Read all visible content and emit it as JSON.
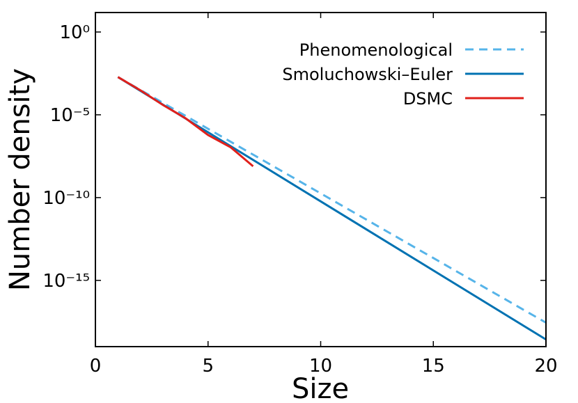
{
  "chart_data": {
    "type": "line",
    "xlabel": "Size",
    "ylabel": "Number density",
    "xlim": [
      0,
      20
    ],
    "xticks": [
      0,
      5,
      10,
      15,
      20
    ],
    "ylim": [
      1e-19,
      15
    ],
    "yscale": "log",
    "yticks": [
      {
        "value": 1,
        "label": "10⁰"
      },
      {
        "value": 1e-05,
        "label": "10⁻⁵"
      },
      {
        "value": 1e-10,
        "label": "10⁻¹⁰"
      },
      {
        "value": 1e-15,
        "label": "10⁻¹⁵"
      }
    ],
    "legend": "upper right",
    "series": [
      {
        "name": "Phenomenological",
        "color": "#56b4e9",
        "dashed": true,
        "x": [
          1,
          20
        ],
        "values": [
          0.0019,
          2.8e-18
        ]
      },
      {
        "name": "Smoluchowski–Euler",
        "color": "#0072b2",
        "dashed": false,
        "x": [
          1,
          20
        ],
        "values": [
          0.0019,
          2.7e-19
        ]
      },
      {
        "name": "DSMC",
        "color": "#e0201b",
        "dashed": false,
        "x": [
          1,
          2,
          3,
          4,
          5,
          6,
          7
        ],
        "values": [
          0.0019,
          0.0003,
          3.9e-05,
          6.2e-06,
          6e-07,
          1.1e-07,
          7.8e-09
        ]
      }
    ]
  }
}
